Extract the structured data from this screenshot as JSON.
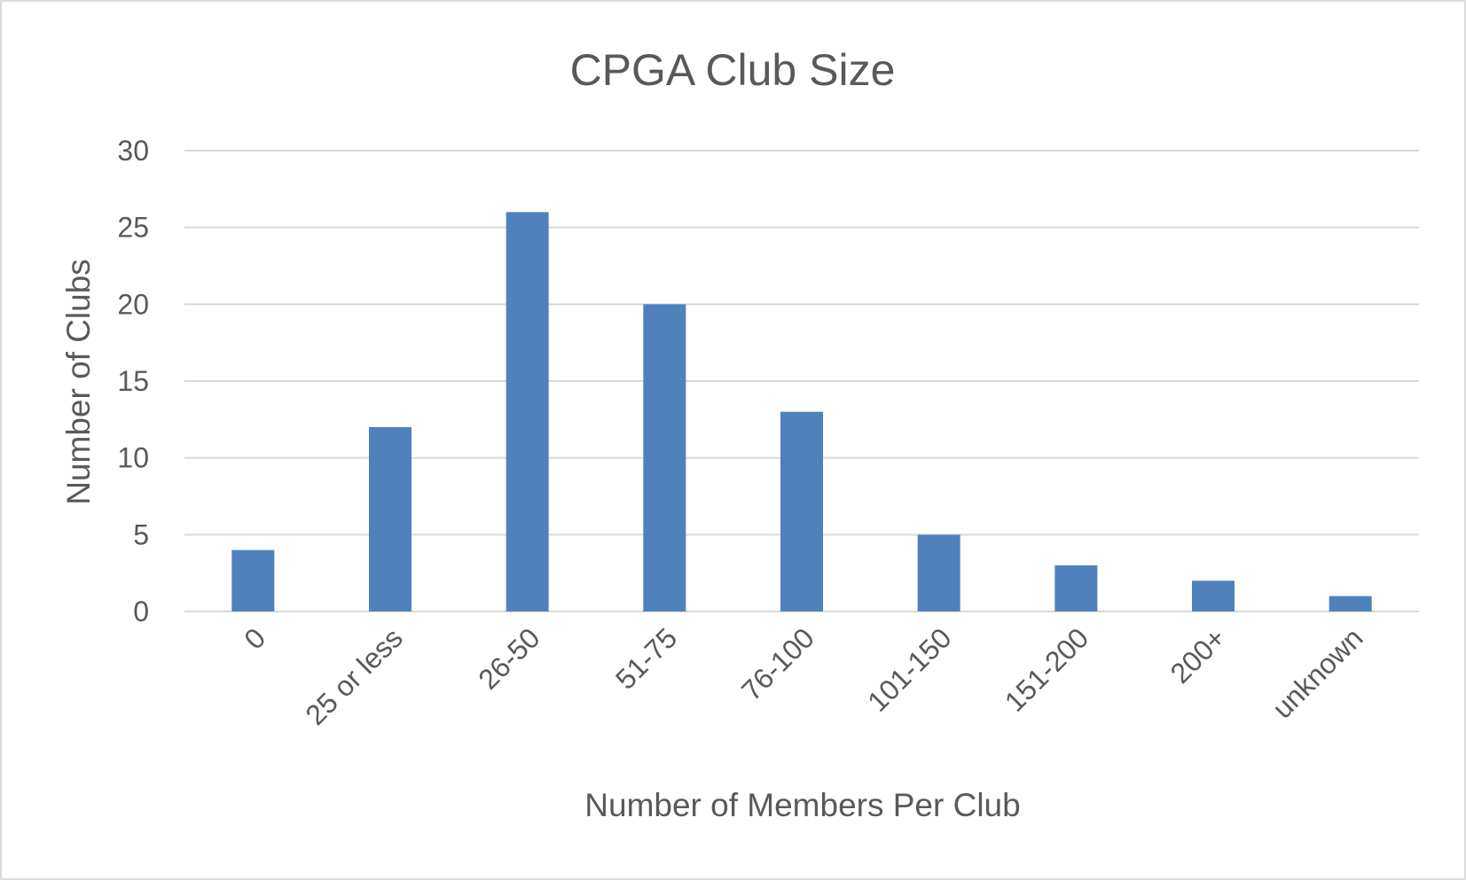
{
  "chart_data": {
    "type": "bar",
    "title": "CPGA Club Size",
    "xlabel": "Number of Members Per Club",
    "ylabel": "Number of Clubs",
    "categories": [
      "0",
      "25 or less",
      "26-50",
      "51-75",
      "76-100",
      "101-150",
      "151-200",
      "200+",
      "unknown"
    ],
    "values": [
      4,
      12,
      26,
      20,
      13,
      5,
      3,
      2,
      1
    ],
    "ylim": [
      0,
      30
    ],
    "yticks": [
      "0",
      "5",
      "10",
      "15",
      "20",
      "25",
      "30"
    ],
    "grid": true,
    "legend": "none",
    "bar_color": "#4f81bd",
    "grid_color": "#d9d9d9",
    "text_color": "#595959"
  }
}
